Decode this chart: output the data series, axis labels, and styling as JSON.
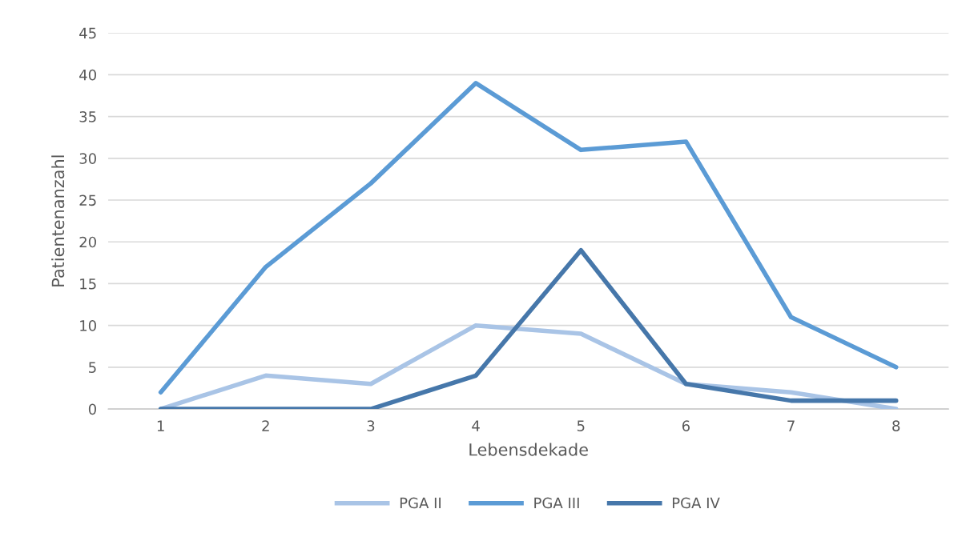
{
  "chart_data": {
    "type": "line",
    "xlabel": "Lebensdekade",
    "ylabel": "Patientenanzahl",
    "categories": [
      "1",
      "2",
      "3",
      "4",
      "5",
      "6",
      "7",
      "8"
    ],
    "series": [
      {
        "name": "PGA II",
        "color": "#a9c4e6",
        "values": [
          0,
          4,
          3,
          10,
          9,
          3,
          2,
          0
        ]
      },
      {
        "name": "PGA III",
        "color": "#5b9bd5",
        "values": [
          2,
          17,
          27,
          39,
          31,
          32,
          11,
          5
        ]
      },
      {
        "name": "PGA IV",
        "color": "#4677aa",
        "values": [
          0,
          0,
          0,
          4,
          19,
          3,
          1,
          1
        ]
      }
    ],
    "ylim": [
      0,
      45
    ],
    "yticks": [
      0,
      5,
      10,
      15,
      20,
      25,
      30,
      35,
      40,
      45
    ],
    "grid": "y",
    "legend": "bottom",
    "marker": "none",
    "line_style": "solid"
  }
}
